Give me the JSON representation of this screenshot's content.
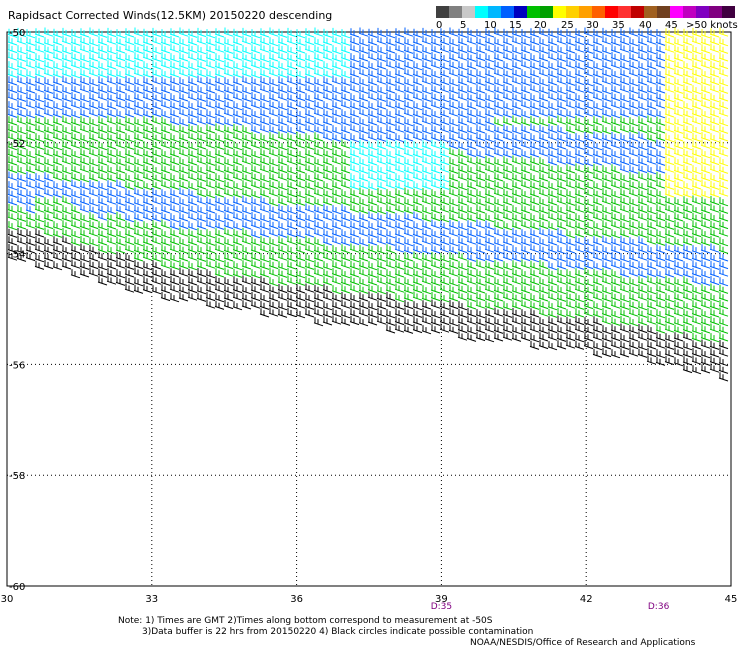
{
  "title": "Rapidsact Corrected Winds(12.5KM) 20150220 descending",
  "legend": {
    "colors": [
      "#404040",
      "#808080",
      "#c8c8c8",
      "#00ffff",
      "#00b8ff",
      "#0060ff",
      "#0000c0",
      "#00c000",
      "#00a000",
      "#ffff00",
      "#ffd000",
      "#ffa000",
      "#ff6000",
      "#ff0000",
      "#ff3030",
      "#c00000",
      "#a06020",
      "#704020",
      "#ff00ff",
      "#c000c0",
      "#8000c0",
      "#800080",
      "#400040"
    ],
    "labels": [
      "0",
      "5",
      "10",
      "15",
      "20",
      "25",
      "30",
      "35",
      "40",
      "45",
      ">50 knots"
    ]
  },
  "axes": {
    "y_ticks": [
      "-50",
      "-52",
      "-54",
      "-56",
      "-58",
      "-60"
    ],
    "x_ticks": [
      "30",
      "33",
      "36",
      "39",
      "42",
      "45"
    ]
  },
  "time_labels": [
    "D:35",
    "D:36"
  ],
  "notes": [
    "Note:  1) Times are GMT 2)Times along bottom correspond to measurement at -50S",
    "3)Data buffer is 22 hrs from 20150220 4) Black circles indicate possible contamination",
    "NOAA/NESDIS/Office of Research and Applications"
  ],
  "chart_data": {
    "type": "wind-barb-map",
    "title": "Rapidsact Corrected Winds(12.5KM) 20150220 descending",
    "x_label": "",
    "y_label": "",
    "x_range": [
      30,
      45
    ],
    "y_range": [
      -60,
      -50
    ],
    "units": "knots",
    "swath_south_edge": [
      [
        30,
        -54.1
      ],
      [
        33,
        -54.8
      ],
      [
        36,
        -55.2
      ],
      [
        39,
        -55.5
      ],
      [
        42,
        -55.8
      ],
      [
        43.5,
        -56.0
      ],
      [
        45,
        -56.3
      ]
    ],
    "speed_bins": [
      {
        "range": "0-5",
        "color": "#808080"
      },
      {
        "range": "5-10",
        "color": "#00ffff"
      },
      {
        "range": "10-15",
        "color": "#0060ff"
      },
      {
        "range": "15-20",
        "color": "#00c000"
      },
      {
        "range": "20-25",
        "color": "#ffff00"
      },
      {
        "range": "25-30",
        "color": "#ffa000"
      }
    ],
    "wind_regions": [
      {
        "area": "northwest lon 30-37, lat -50 to -51",
        "speed_knots": "5-10",
        "color": "#00ffff"
      },
      {
        "area": "central lon 30-41, lat -50 to -53",
        "speed_knots": "10-15",
        "color": "#0060ff"
      },
      {
        "area": "center lon 37-39, lat -52 to -53",
        "speed_knots": "5-10",
        "color": "#00ffff"
      },
      {
        "area": "bands lon 30-45, lat -51.5 to -56",
        "speed_knots": "15-20",
        "color": "#00c000"
      },
      {
        "area": "southern edge band lon 30-45, lat -53.5 to -56.3",
        "speed_knots": "black barbs",
        "color": "#000000"
      },
      {
        "area": "northeast lon 43.5-45, lat -50 to -53",
        "speed_knots": "20-30",
        "color": "#ffd000"
      }
    ]
  }
}
